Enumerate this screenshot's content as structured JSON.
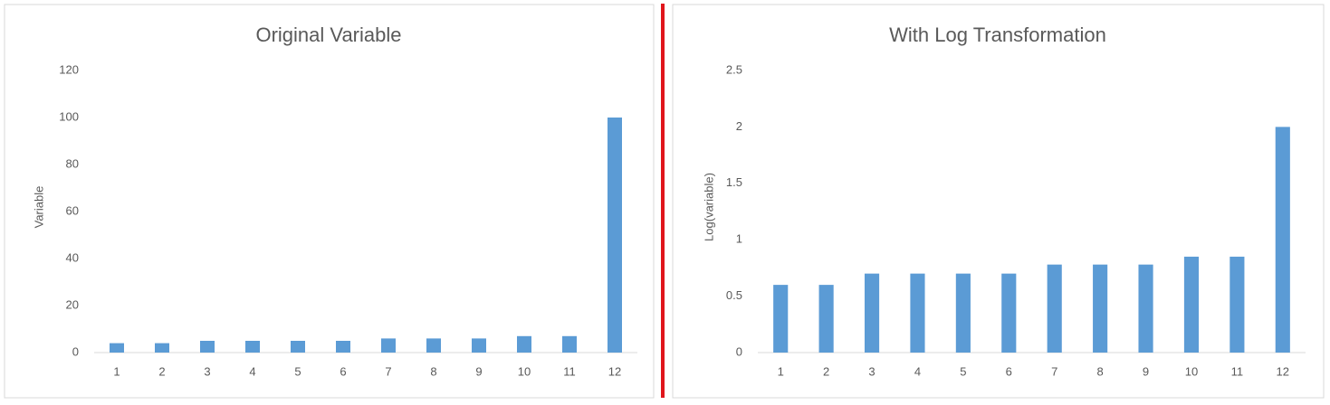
{
  "chart_data": [
    {
      "type": "bar",
      "title": "Original Variable",
      "y_label": "Variable",
      "categories": [
        "1",
        "2",
        "3",
        "4",
        "5",
        "6",
        "7",
        "8",
        "9",
        "10",
        "11",
        "12"
      ],
      "values": [
        4,
        4,
        5,
        5,
        5,
        5,
        6,
        6,
        6,
        7,
        7,
        100
      ],
      "color": "#5b9bd5",
      "ylim": [
        0,
        120
      ],
      "yticks": [
        0,
        20,
        40,
        60,
        80,
        100,
        120
      ],
      "grid": false
    },
    {
      "type": "bar",
      "title": "With Log Transformation",
      "y_label": "Log(variable)",
      "categories": [
        "1",
        "2",
        "3",
        "4",
        "5",
        "6",
        "7",
        "8",
        "9",
        "10",
        "11",
        "12"
      ],
      "values": [
        0.6,
        0.6,
        0.7,
        0.7,
        0.7,
        0.7,
        0.78,
        0.78,
        0.78,
        0.85,
        0.85,
        2
      ],
      "color": "#5b9bd5",
      "ylim": [
        0,
        2.5
      ],
      "yticks": [
        0,
        0.5,
        1,
        1.5,
        2,
        2.5
      ],
      "grid": false
    }
  ]
}
